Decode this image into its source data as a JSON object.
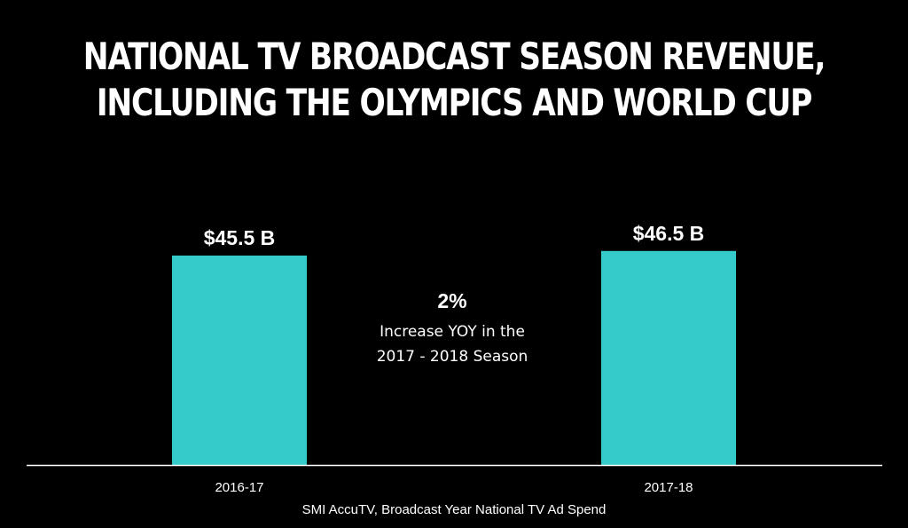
{
  "title": {
    "line1": "NATIONAL TV BROADCAST SEASON REVENUE,",
    "line2": "INCLUDING THE OLYMPICS AND WORLD CUP"
  },
  "callout": {
    "value": "2%",
    "line1": "Increase YOY in the",
    "line2": "2017 - 2018 Season"
  },
  "source": "SMI AccuTV, Broadcast Year National TV Ad Spend",
  "chart_data": {
    "type": "bar",
    "categories": [
      "2016-17",
      "2017-18"
    ],
    "values": [
      45.5,
      46.5
    ],
    "data_labels": [
      "$45.5 B",
      "$46.5 B"
    ],
    "title": "NATIONAL TV BROADCAST SEASON REVENUE, INCLUDING THE OLYMPICS AND WORLD CUP",
    "xlabel": "",
    "ylabel": "",
    "grid": false,
    "legend": "none",
    "bar_color": "#36CBCB",
    "background": "#000000",
    "axis_color": "#FFFFFF"
  }
}
